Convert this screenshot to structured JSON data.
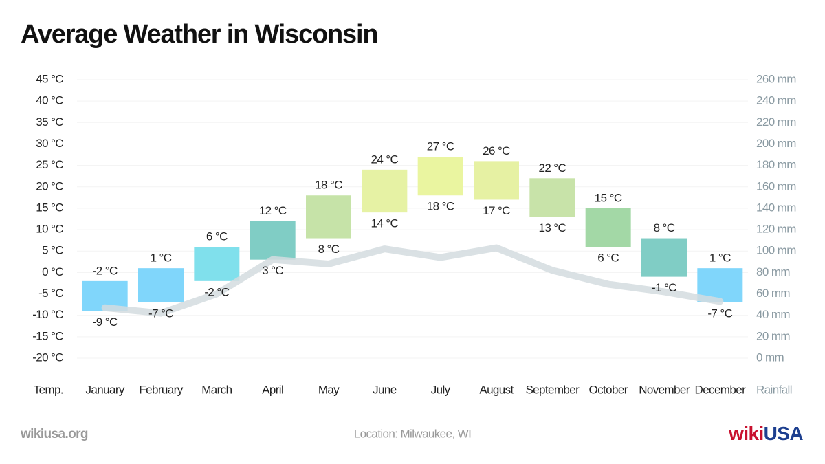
{
  "chart_data": {
    "type": "bar",
    "title": "Average Weather in Wisconsin",
    "categories": [
      "January",
      "February",
      "March",
      "April",
      "May",
      "June",
      "July",
      "August",
      "September",
      "October",
      "November",
      "December"
    ],
    "series": [
      {
        "values": [
          -2,
          1,
          6,
          12,
          18,
          24,
          27,
          26,
          22,
          15,
          8,
          1
        ],
        "value_labels": [
          "-2 °C",
          "1 °C",
          "6 °C",
          "12 °C",
          "18 °C",
          "24 °C",
          "27 °C",
          "26 °C",
          "22 °C",
          "15 °C",
          "8 °C",
          "1 °C"
        ]
      },
      {
        "values": [
          -9,
          -7,
          -2,
          3,
          8,
          14,
          18,
          17,
          13,
          6,
          -1,
          -7
        ],
        "value_labels": [
          "-9 °C",
          "-7 °C",
          "-2 °C",
          "3 °C",
          "8 °C",
          "14 °C",
          "18 °C",
          "17 °C",
          "13 °C",
          "6 °C",
          "-1 °C",
          "-7 °C"
        ]
      }
    ],
    "colors": [
      "#80d6fb",
      "#80d6fb",
      "#80e0ec",
      "#80cdc5",
      "#c6e3a8",
      "#e6f2a4",
      "#eaf5a0",
      "#e6f1a3",
      "#c8e3a9",
      "#a3d8a6",
      "#80cdc5",
      "#80d6fb"
    ],
    "line": {
      "type": "line",
      "axis": "y2",
      "color": "#d3dcdf",
      "values": [
        47,
        42,
        60,
        92,
        88,
        102,
        94,
        103,
        82,
        69,
        62,
        53
      ]
    },
    "y_label": "Temp.",
    "y2_label": "Rainfall",
    "ylim": [
      -20,
      45
    ],
    "yticks": [
      {
        "value": 45,
        "label": "45 °C"
      },
      {
        "value": 40,
        "label": "40 °C"
      },
      {
        "value": 35,
        "label": "35 °C"
      },
      {
        "value": 30,
        "label": "30 °C"
      },
      {
        "value": 25,
        "label": "25 °C"
      },
      {
        "value": 20,
        "label": "20 °C"
      },
      {
        "value": 15,
        "label": "15 °C"
      },
      {
        "value": 10,
        "label": "10 °C"
      },
      {
        "value": 5,
        "label": "5 °C"
      },
      {
        "value": 0,
        "label": "0 °C"
      },
      {
        "value": -5,
        "label": "-5 °C"
      },
      {
        "value": -10,
        "label": "-10 °C"
      },
      {
        "value": -15,
        "label": "-15 °C"
      },
      {
        "value": -20,
        "label": "-20 °C"
      }
    ],
    "y2lim": [
      0,
      260
    ],
    "y2ticks": [
      {
        "value": 260,
        "label": "260 mm"
      },
      {
        "value": 240,
        "label": "240 mm"
      },
      {
        "value": 220,
        "label": "220 mm"
      },
      {
        "value": 200,
        "label": "200 mm"
      },
      {
        "value": 180,
        "label": "180 mm"
      },
      {
        "value": 160,
        "label": "160 mm"
      },
      {
        "value": 140,
        "label": "140 mm"
      },
      {
        "value": 120,
        "label": "120 mm"
      },
      {
        "value": 100,
        "label": "100 mm"
      },
      {
        "value": 80,
        "label": "80 mm"
      },
      {
        "value": 60,
        "label": "60 mm"
      },
      {
        "value": 40,
        "label": "40 mm"
      },
      {
        "value": 20,
        "label": "20 mm"
      },
      {
        "value": 0,
        "label": "0 mm"
      }
    ],
    "grid": true
  },
  "footer": {
    "site": "wikiusa.org",
    "location": "Location: Milwaukee, WI",
    "logo_a": "wiki",
    "logo_b": "USA"
  }
}
